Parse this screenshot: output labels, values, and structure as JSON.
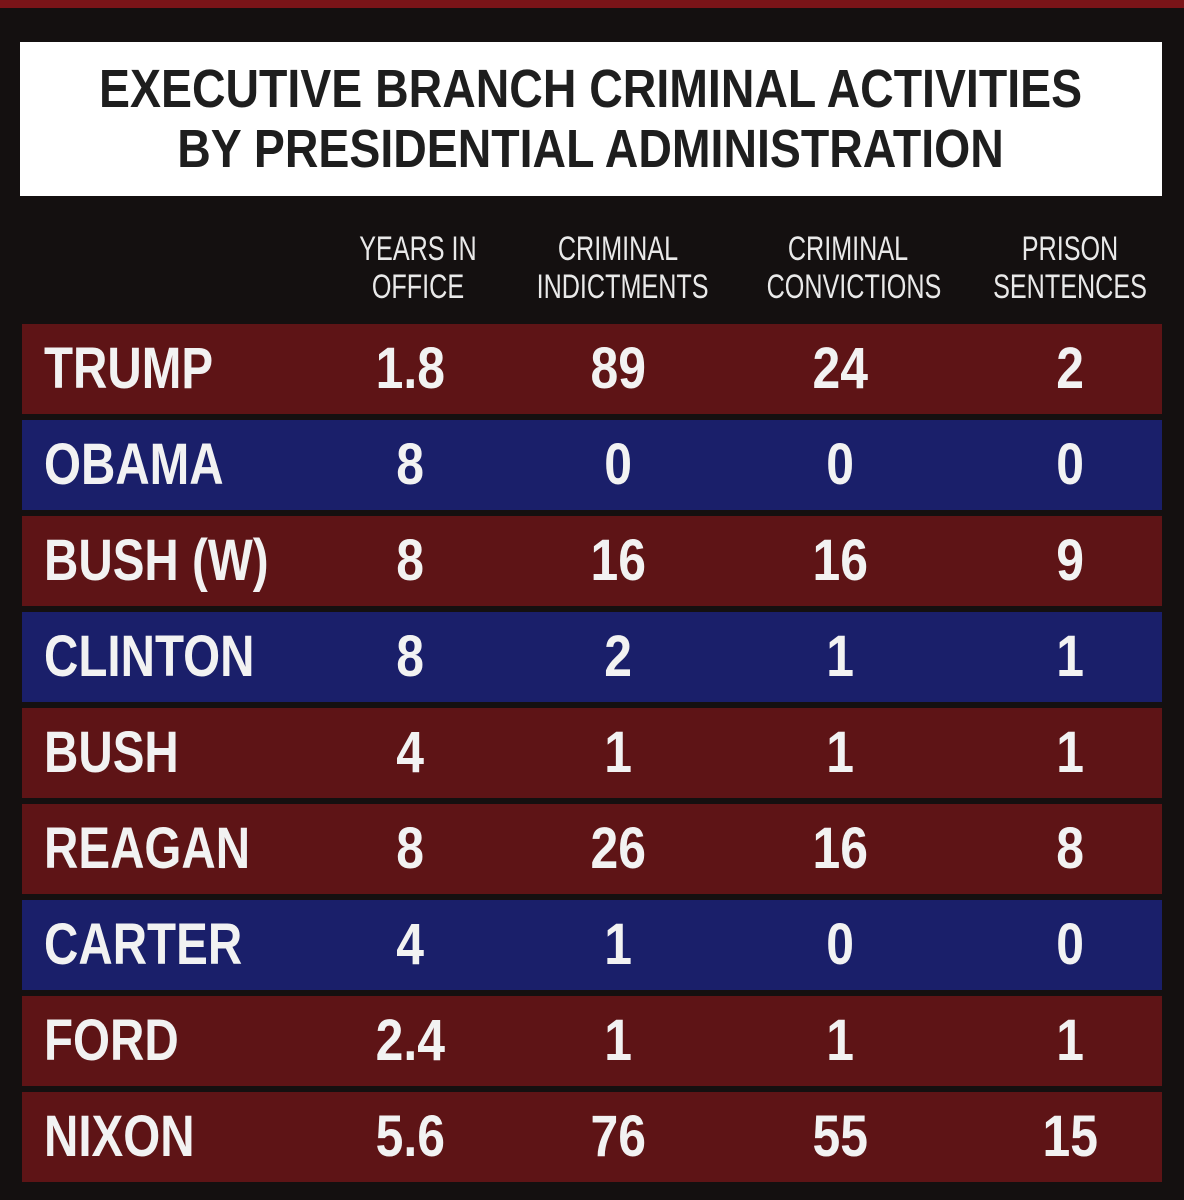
{
  "chart_data": {
    "type": "table",
    "title_lines": [
      "EXECUTIVE BRANCH CRIMINAL ACTIVITIES",
      "BY PRESIDENTIAL ADMINISTRATION"
    ],
    "columns": [
      {
        "line1": "YEARS IN",
        "line2": "OFFICE"
      },
      {
        "line1": "CRIMINAL",
        "line2": "INDICTMENTS"
      },
      {
        "line1": "CRIMINAL",
        "line2": "CONVICTIONS"
      },
      {
        "line1": "PRISON",
        "line2": "SENTENCES"
      }
    ],
    "rows": [
      {
        "name": "TRUMP",
        "party_color": "#5e1416",
        "values": [
          "1.8",
          "89",
          "24",
          "2"
        ]
      },
      {
        "name": "OBAMA",
        "party_color": "#1a1f6a",
        "values": [
          "8",
          "0",
          "0",
          "0"
        ]
      },
      {
        "name": "BUSH (W)",
        "party_color": "#5e1416",
        "values": [
          "8",
          "16",
          "16",
          "9"
        ]
      },
      {
        "name": "CLINTON",
        "party_color": "#1a1f6a",
        "values": [
          "8",
          "2",
          "1",
          "1"
        ]
      },
      {
        "name": "BUSH",
        "party_color": "#5e1416",
        "values": [
          "4",
          "1",
          "1",
          "1"
        ]
      },
      {
        "name": "REAGAN",
        "party_color": "#5e1416",
        "values": [
          "8",
          "26",
          "16",
          "8"
        ]
      },
      {
        "name": "CARTER",
        "party_color": "#1a1f6a",
        "values": [
          "4",
          "1",
          "0",
          "0"
        ]
      },
      {
        "name": "FORD",
        "party_color": "#5e1416",
        "values": [
          "2.4",
          "1",
          "1",
          "1"
        ]
      },
      {
        "name": "NIXON",
        "party_color": "#5e1416",
        "values": [
          "5.6",
          "76",
          "55",
          "15"
        ]
      }
    ],
    "colors": {
      "republican_row": "#5e1416",
      "democrat_row": "#1a1f6a",
      "background": "#141010",
      "title_background": "#ffffff",
      "text": "#f2f2f2"
    }
  }
}
